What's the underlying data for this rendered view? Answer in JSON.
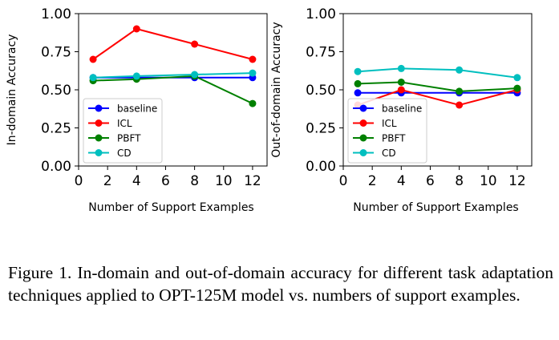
{
  "chart_data": [
    {
      "type": "line",
      "x": [
        1,
        4,
        8,
        12
      ],
      "xlabel": "Number of Support Examples",
      "ylabel": "In-domain Accuracy",
      "xlim": [
        0,
        13
      ],
      "ylim": [
        0,
        1
      ],
      "xticks": [
        "0",
        "2",
        "4",
        "6",
        "8",
        "10",
        "12"
      ],
      "yticks": [
        "0.00",
        "0.25",
        "0.50",
        "0.75",
        "1.00"
      ],
      "legend": "lower-left",
      "grid": false,
      "series": [
        {
          "name": "baseline",
          "color": "#0000ff",
          "values": [
            0.58,
            0.58,
            0.58,
            0.58
          ]
        },
        {
          "name": "ICL",
          "color": "#ff0000",
          "values": [
            0.7,
            0.9,
            0.8,
            0.7
          ]
        },
        {
          "name": "PBFT",
          "color": "#008000",
          "values": [
            0.56,
            0.57,
            0.59,
            0.41
          ]
        },
        {
          "name": "CD",
          "color": "#00bfbf",
          "values": [
            0.58,
            0.59,
            0.6,
            0.61
          ]
        }
      ]
    },
    {
      "type": "line",
      "x": [
        1,
        4,
        8,
        12
      ],
      "xlabel": "Number of Support Examples",
      "ylabel": "Out-of-domain Accuracy",
      "xlim": [
        0,
        13
      ],
      "ylim": [
        0,
        1
      ],
      "xticks": [
        "0",
        "2",
        "4",
        "6",
        "8",
        "10",
        "12"
      ],
      "yticks": [
        "0.00",
        "0.25",
        "0.50",
        "0.75",
        "1.00"
      ],
      "legend": "lower-left",
      "grid": false,
      "series": [
        {
          "name": "baseline",
          "color": "#0000ff",
          "values": [
            0.48,
            0.48,
            0.48,
            0.48
          ]
        },
        {
          "name": "ICL",
          "color": "#ff0000",
          "values": [
            0.4,
            0.5,
            0.4,
            0.5
          ]
        },
        {
          "name": "PBFT",
          "color": "#008000",
          "values": [
            0.54,
            0.55,
            0.49,
            0.51
          ]
        },
        {
          "name": "CD",
          "color": "#00bfbf",
          "values": [
            0.62,
            0.64,
            0.63,
            0.58
          ]
        }
      ]
    }
  ],
  "caption": "Figure 1. In-domain and out-of-domain accuracy for different task adaptation techniques applied to OPT-125M model vs.  numbers of support examples."
}
